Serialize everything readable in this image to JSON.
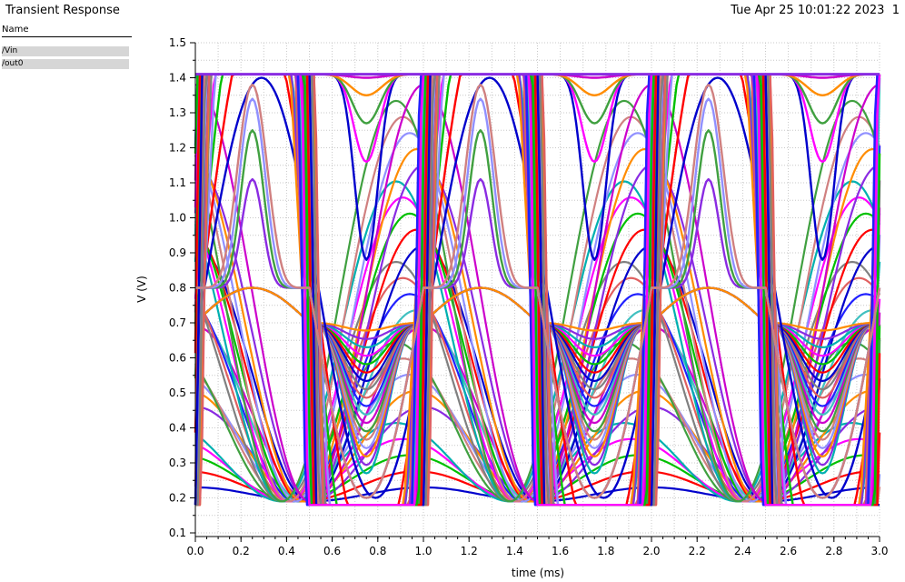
{
  "header": {
    "title": "Transient Response",
    "timestamp": "Tue Apr 25 10:01:22 2023",
    "page_number": "1"
  },
  "legend": {
    "heading": "Name",
    "items": [
      {
        "label": "/Vin"
      },
      {
        "label": "/out0"
      }
    ]
  },
  "chart_data": {
    "type": "line",
    "title": "Transient Response",
    "xlabel": "time (ms)",
    "ylabel": "V (V)",
    "xlim": [
      0.0,
      3.0
    ],
    "ylim": [
      0.1,
      1.5
    ],
    "xticks": [
      "0.0",
      "0.2",
      "0.4",
      "0.6",
      "0.8",
      "1.0",
      "1.2",
      "1.4",
      "1.6",
      "1.8",
      "2.0",
      "2.2",
      "2.4",
      "2.6",
      "2.8",
      "3.0"
    ],
    "yticks": [
      "0.1",
      "0.2",
      "0.3",
      "0.4",
      "0.5",
      "0.6",
      "0.7",
      "0.8",
      "0.9",
      "1.0",
      "1.1",
      "1.2",
      "1.3",
      "1.4",
      "1.5"
    ],
    "grid": true,
    "period_ms": 1.0,
    "series": [
      {
        "name": "/Vin",
        "description": "sinusoidal sweep families, max 1.41 V",
        "peak": 1.41
      },
      {
        "name": "/out0",
        "description": "output families, swing about 0.18 V to 0.80 V",
        "peak": 0.8
      }
    ]
  }
}
